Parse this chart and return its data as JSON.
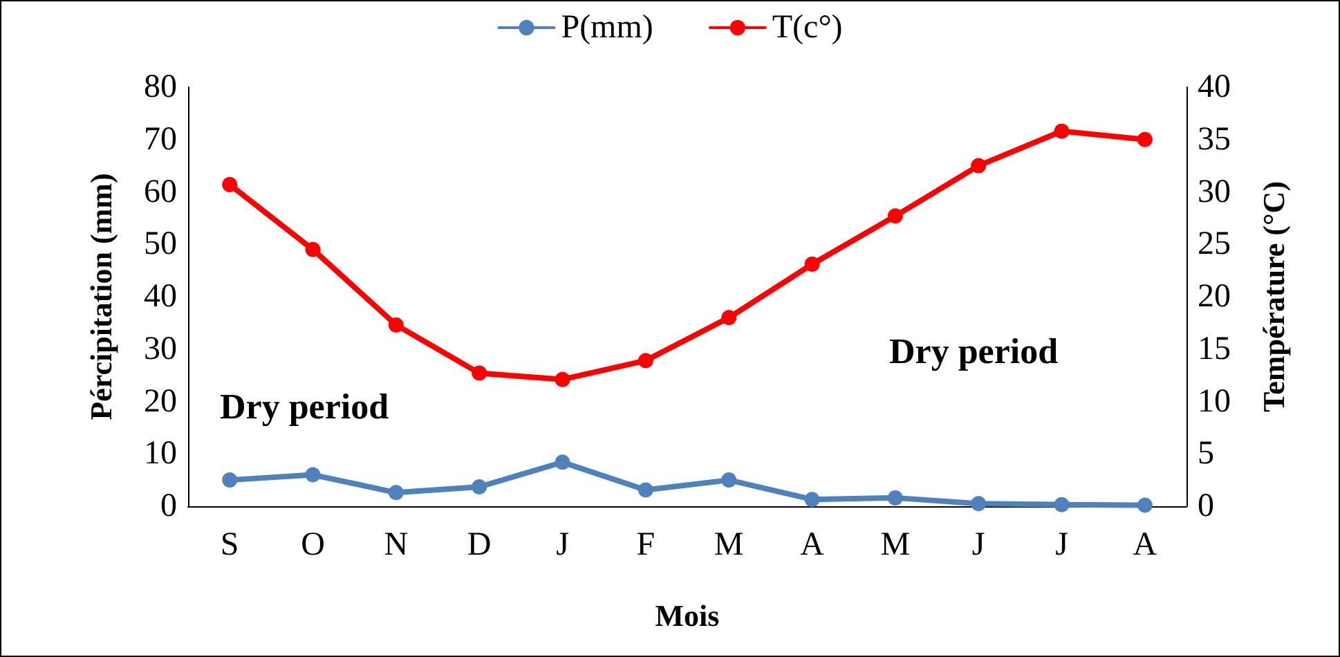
{
  "chart_data": {
    "type": "line",
    "xlabel": "Mois",
    "ylabel": "Pércipitation (mm)",
    "y2label": "Température (°C)",
    "categories": [
      "S",
      "O",
      "N",
      "D",
      "J",
      "F",
      "M",
      "A",
      "M",
      "J",
      "J",
      "A"
    ],
    "series": [
      {
        "name": "P(mm)",
        "color": "#4f81bd",
        "values": [
          5.0,
          6.0,
          2.6,
          3.7,
          8.4,
          3.1,
          5.0,
          1.3,
          1.6,
          0.5,
          0.3,
          0.2
        ]
      },
      {
        "name": "T(c°)",
        "color": "#ff0000",
        "axis": "y2",
        "values": [
          30.7,
          24.5,
          17.3,
          12.7,
          12.1,
          13.9,
          18.0,
          23.1,
          27.7,
          32.5,
          35.8,
          35.0
        ]
      }
    ],
    "ylim": [
      0,
      80
    ],
    "yticks": [
      0,
      10,
      20,
      30,
      40,
      50,
      60,
      70,
      80
    ],
    "y2lim": [
      0,
      40
    ],
    "y2ticks": [
      0,
      5,
      10,
      15,
      20,
      25,
      30,
      35,
      40
    ],
    "annotations": [
      "Dry period",
      "Dry period"
    ],
    "grid": false,
    "legend": "top",
    "marker": "circle",
    "line_style": "solid"
  }
}
